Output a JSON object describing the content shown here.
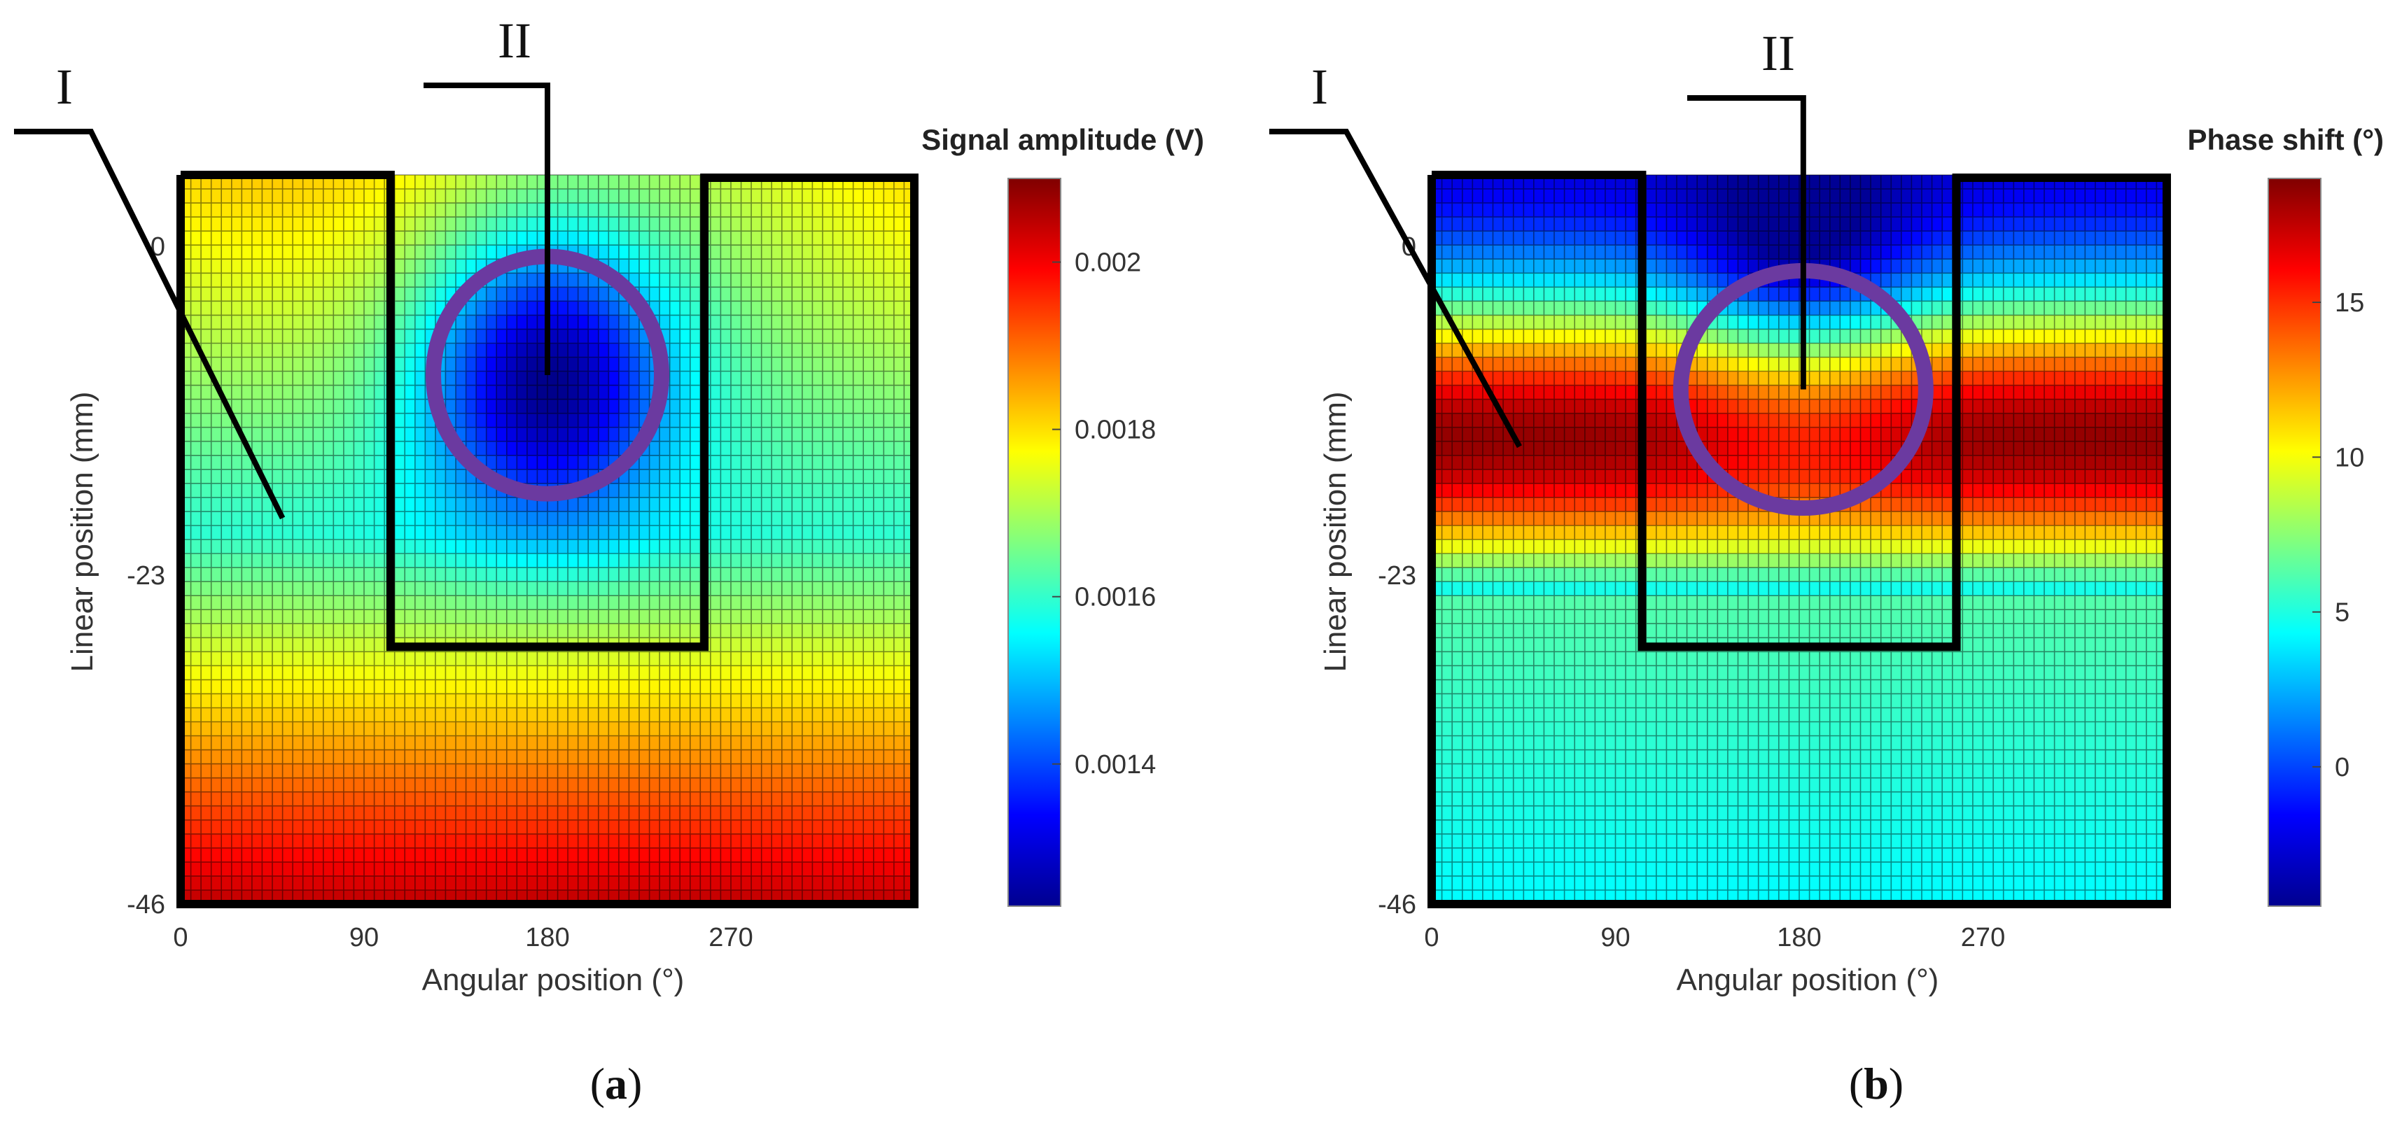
{
  "chart_data": [
    {
      "type": "heatmap",
      "panel": "a",
      "caption_letter": "a",
      "xlabel": "Angular position  (°)",
      "ylabel": "Linear position  (mm)",
      "x_ticks": [
        "0",
        "90",
        "180",
        "270"
      ],
      "x_tick_values": [
        0,
        90,
        180,
        270
      ],
      "y_ticks": [
        "0",
        "-23",
        "-46"
      ],
      "y_tick_values": [
        0,
        -23,
        -46
      ],
      "xlim": [
        0,
        360
      ],
      "ylim": [
        -46,
        5
      ],
      "grid_cols": 72,
      "grid_rows": 52,
      "colorbar": {
        "title": "Signal amplitude  (V)",
        "min": 0.00123,
        "max": 0.0021,
        "ticks": [
          "0.002",
          "0.0018",
          "0.0016",
          "0.0014"
        ],
        "tick_values": [
          0.002,
          0.0018,
          0.0016,
          0.0014
        ]
      },
      "field": "amplitude",
      "region_I_label": "I",
      "region_II_label": "II",
      "region_II_outline": {
        "x_start": 103,
        "x_end": 257,
        "y_top": 5,
        "y_bottom": -28
      },
      "region_II_circle": {
        "center_x": 180,
        "center_y": -9,
        "radius_x": 56,
        "radius_y": 8.3
      },
      "region_I_pointer_end": {
        "x": 50,
        "y": -19
      }
    },
    {
      "type": "heatmap",
      "panel": "b",
      "caption_letter": "b",
      "xlabel": "Angular position  (°)",
      "ylabel": "Linear position  (mm)",
      "x_ticks": [
        "0",
        "90",
        "180",
        "270"
      ],
      "x_tick_values": [
        0,
        90,
        180,
        270
      ],
      "y_ticks": [
        "0",
        "-23",
        "-46"
      ],
      "y_tick_values": [
        0,
        -23,
        -46
      ],
      "xlim": [
        0,
        360
      ],
      "ylim": [
        -46,
        5
      ],
      "grid_cols": 72,
      "grid_rows": 52,
      "colorbar": {
        "title": "Phase shift  (°)",
        "min": -4.5,
        "max": 19,
        "ticks": [
          "15",
          "10",
          "5",
          "0"
        ],
        "tick_values": [
          15,
          10,
          5,
          0
        ]
      },
      "field": "phase",
      "region_I_label": "I",
      "region_II_label": "II",
      "region_II_outline": {
        "x_start": 103,
        "x_end": 257,
        "y_top": 5,
        "y_bottom": -28
      },
      "region_II_circle": {
        "center_x": 182,
        "center_y": -10,
        "radius_x": 60,
        "radius_y": 8.3
      },
      "region_I_pointer_end": {
        "x": 43,
        "y": -14
      }
    }
  ]
}
